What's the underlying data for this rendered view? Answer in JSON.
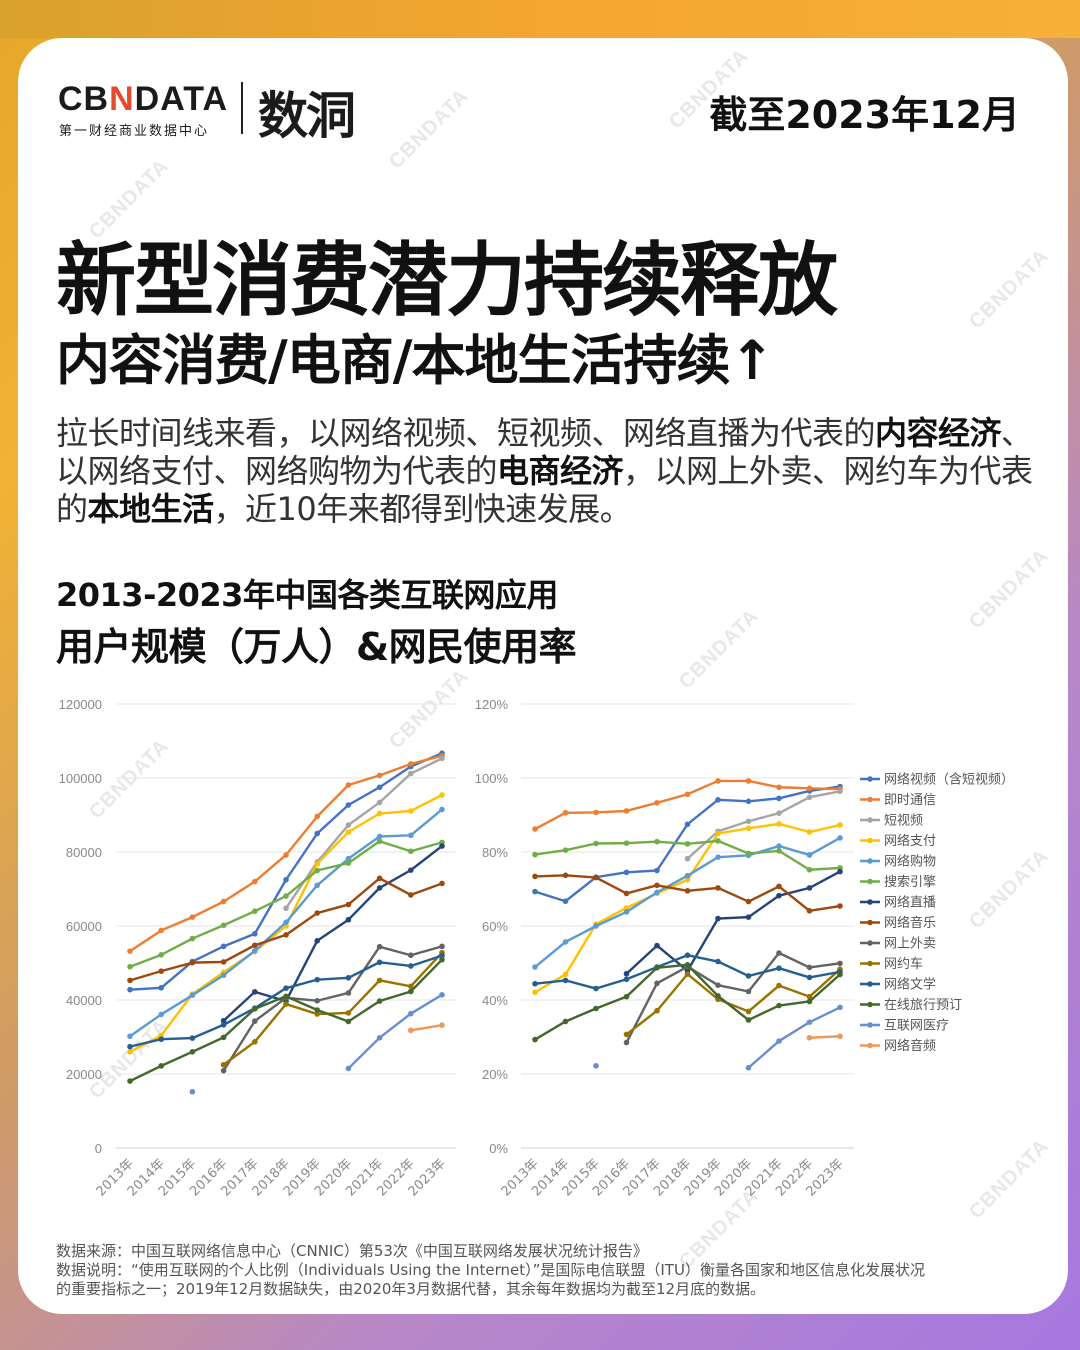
{
  "brand": {
    "cbn_pre": "CB",
    "cbn_x": "N",
    "cbn_post": "DATA",
    "cbn_sub": "第一财经商业数据中心",
    "shudong": "数洞"
  },
  "date_label": "截至2023年12月",
  "title": "新型消费潜力持续释放",
  "subtitle": "内容消费/电商/本地生活持续↑",
  "paragraph": {
    "p1": "拉长时间线来看，以网络视频、短视频、网络直播为代表的",
    "b1": "内容经济",
    "p2": "、以网络支付、网络购物为代表的",
    "b2": "电商经济",
    "p3": "，以网上外卖、网约车为代表的",
    "b3": "本地生活",
    "p4": "，近10年来都得到快速发展。"
  },
  "chart_title_1": "2013-2023年中国各类互联网应用",
  "chart_title_2": "用户规模（万人）&网民使用率",
  "chart_data": [
    {
      "type": "line",
      "categories": [
        "2013年",
        "2014年",
        "2015年",
        "2016年",
        "2017年",
        "2018年",
        "2019年",
        "2020年",
        "2021年",
        "2022年",
        "2023年"
      ],
      "ylim": [
        0,
        120000
      ],
      "yticks": [
        "0",
        "20000",
        "40000",
        "60000",
        "80000",
        "100000",
        "120000"
      ],
      "series": [
        {
          "name": "网络视频（含短视频）",
          "color": "#4472c4",
          "values": [
            42800,
            43300,
            50400,
            54500,
            57900,
            72500,
            85000,
            92700,
            97500,
            103100,
            106700
          ]
        },
        {
          "name": "即时通信",
          "color": "#ed7d31",
          "values": [
            53200,
            58800,
            62400,
            66600,
            72000,
            79200,
            89600,
            98100,
            100700,
            103800,
            106000
          ]
        },
        {
          "name": "短视频",
          "color": "#a5a5a5",
          "values": [
            null,
            null,
            null,
            null,
            null,
            64800,
            77300,
            87300,
            93400,
            101200,
            105300
          ]
        },
        {
          "name": "网络支付",
          "color": "#ffc000",
          "values": [
            26000,
            30400,
            41600,
            47500,
            53100,
            60000,
            76800,
            85400,
            90400,
            91100,
            95400
          ]
        },
        {
          "name": "网络购物",
          "color": "#5b9bd5",
          "values": [
            30200,
            36100,
            41300,
            46700,
            53300,
            61000,
            71000,
            78200,
            84200,
            84500,
            91500
          ]
        },
        {
          "name": "搜索引擎",
          "color": "#70ad47",
          "values": [
            49000,
            52200,
            56600,
            60200,
            64000,
            68100,
            75000,
            77000,
            82900,
            80200,
            82600
          ]
        },
        {
          "name": "网络直播",
          "color": "#264478",
          "values": [
            null,
            null,
            null,
            34400,
            42200,
            39700,
            56000,
            61700,
            70300,
            75100,
            81600
          ]
        },
        {
          "name": "网络音乐",
          "color": "#9e480e",
          "values": [
            45300,
            47800,
            50100,
            50300,
            54800,
            57600,
            63500,
            65800,
            72900,
            68400,
            71500
          ]
        },
        {
          "name": "网上外卖",
          "color": "#636363",
          "values": [
            null,
            null,
            null,
            20900,
            34300,
            40600,
            39800,
            41900,
            54400,
            52100,
            54500
          ]
        },
        {
          "name": "网约车",
          "color": "#997300",
          "values": [
            null,
            null,
            null,
            22500,
            28700,
            38900,
            36200,
            36500,
            45300,
            43700,
            52800
          ]
        },
        {
          "name": "网络文学",
          "color": "#255e91",
          "values": [
            27400,
            29400,
            29700,
            33300,
            37800,
            43200,
            45500,
            46000,
            50200,
            49200,
            52000
          ]
        },
        {
          "name": "在线旅行预订",
          "color": "#43682b",
          "values": [
            18100,
            22200,
            26000,
            29900,
            37600,
            41000,
            37300,
            34200,
            39700,
            42300,
            50900
          ]
        },
        {
          "name": "互联网医疗",
          "color": "#698ed0",
          "values": [
            null,
            null,
            15200,
            null,
            null,
            null,
            null,
            21500,
            29800,
            36300,
            41400
          ]
        },
        {
          "name": "网络音频",
          "color": "#f1975a",
          "values": [
            null,
            null,
            null,
            null,
            null,
            null,
            null,
            null,
            null,
            31800,
            33200
          ]
        }
      ]
    },
    {
      "type": "line",
      "categories": [
        "2013年",
        "2014年",
        "2015年",
        "2016年",
        "2017年",
        "2018年",
        "2019年",
        "2020年",
        "2021年",
        "2022年",
        "2023年"
      ],
      "ylim": [
        0,
        120
      ],
      "yticks": [
        "0%",
        "20%",
        "40%",
        "60%",
        "80%",
        "100%",
        "120%"
      ],
      "series": [
        {
          "name": "网络视频（含短视频）",
          "color": "#4472c4",
          "values": [
            69.3,
            66.7,
            73.2,
            74.5,
            75.0,
            87.5,
            94.1,
            93.7,
            94.5,
            96.5,
            97.7
          ]
        },
        {
          "name": "即时通信",
          "color": "#ed7d31",
          "values": [
            86.2,
            90.6,
            90.7,
            91.1,
            93.3,
            95.6,
            99.2,
            99.2,
            97.5,
            97.2,
            97.0
          ]
        },
        {
          "name": "短视频",
          "color": "#a5a5a5",
          "values": [
            null,
            null,
            null,
            null,
            null,
            78.2,
            85.6,
            88.3,
            90.5,
            94.8,
            96.4
          ]
        },
        {
          "name": "网络支付",
          "color": "#ffc000",
          "values": [
            42.1,
            46.9,
            60.5,
            64.9,
            68.8,
            72.5,
            85.0,
            86.4,
            87.6,
            85.4,
            87.3
          ]
        },
        {
          "name": "网络购物",
          "color": "#5b9bd5",
          "values": [
            48.9,
            55.7,
            60.0,
            63.8,
            69.1,
            73.6,
            78.6,
            79.1,
            81.6,
            79.2,
            83.8
          ]
        },
        {
          "name": "搜索引擎",
          "color": "#70ad47",
          "values": [
            79.3,
            80.5,
            82.3,
            82.4,
            82.8,
            82.2,
            83.0,
            79.6,
            80.3,
            75.2,
            75.7
          ]
        },
        {
          "name": "网络直播",
          "color": "#264478",
          "values": [
            null,
            null,
            null,
            47.1,
            54.7,
            47.9,
            62.0,
            62.4,
            68.2,
            70.3,
            74.7
          ]
        },
        {
          "name": "网络音乐",
          "color": "#9e480e",
          "values": [
            73.4,
            73.7,
            73.1,
            68.8,
            71.0,
            69.5,
            70.3,
            66.6,
            70.7,
            64.1,
            65.4
          ]
        },
        {
          "name": "网上外卖",
          "color": "#636363",
          "values": [
            null,
            null,
            null,
            28.5,
            44.5,
            49.0,
            44.0,
            42.3,
            52.7,
            48.8,
            49.9
          ]
        },
        {
          "name": "网约车",
          "color": "#997300",
          "values": [
            null,
            null,
            null,
            30.7,
            37.1,
            47.0,
            40.2,
            36.9,
            43.9,
            40.9,
            48.3
          ]
        },
        {
          "name": "网络文学",
          "color": "#255e91",
          "values": [
            44.4,
            45.3,
            43.1,
            45.6,
            48.9,
            52.1,
            50.4,
            46.5,
            48.6,
            46.1,
            47.6
          ]
        },
        {
          "name": "在线旅行预订",
          "color": "#43682b",
          "values": [
            29.3,
            34.2,
            37.7,
            40.9,
            48.7,
            49.5,
            41.1,
            34.6,
            38.5,
            39.6,
            46.9
          ]
        },
        {
          "name": "互联网医疗",
          "color": "#698ed0",
          "values": [
            null,
            null,
            22.2,
            null,
            null,
            null,
            null,
            21.7,
            28.9,
            34.0,
            38.0
          ]
        },
        {
          "name": "网络音频",
          "color": "#f1975a",
          "values": [
            null,
            null,
            null,
            null,
            null,
            null,
            null,
            null,
            null,
            29.8,
            30.2
          ]
        }
      ]
    }
  ],
  "notes": {
    "line1": "数据来源：中国互联网络信息中心（CNNIC）第53次《中国互联网络发展状况统计报告》",
    "line2": "数据说明：“使用互联网的个人比例（Individuals Using the Internet）”是国际电信联盟（ITU）衡量各国家和地区信息化发展状况",
    "line3": "的重要指标之一；2019年12月数据缺失，由2020年3月数据代替，其余每年数据均为截至12月底的数据。"
  },
  "watermark": "CBNDATA"
}
